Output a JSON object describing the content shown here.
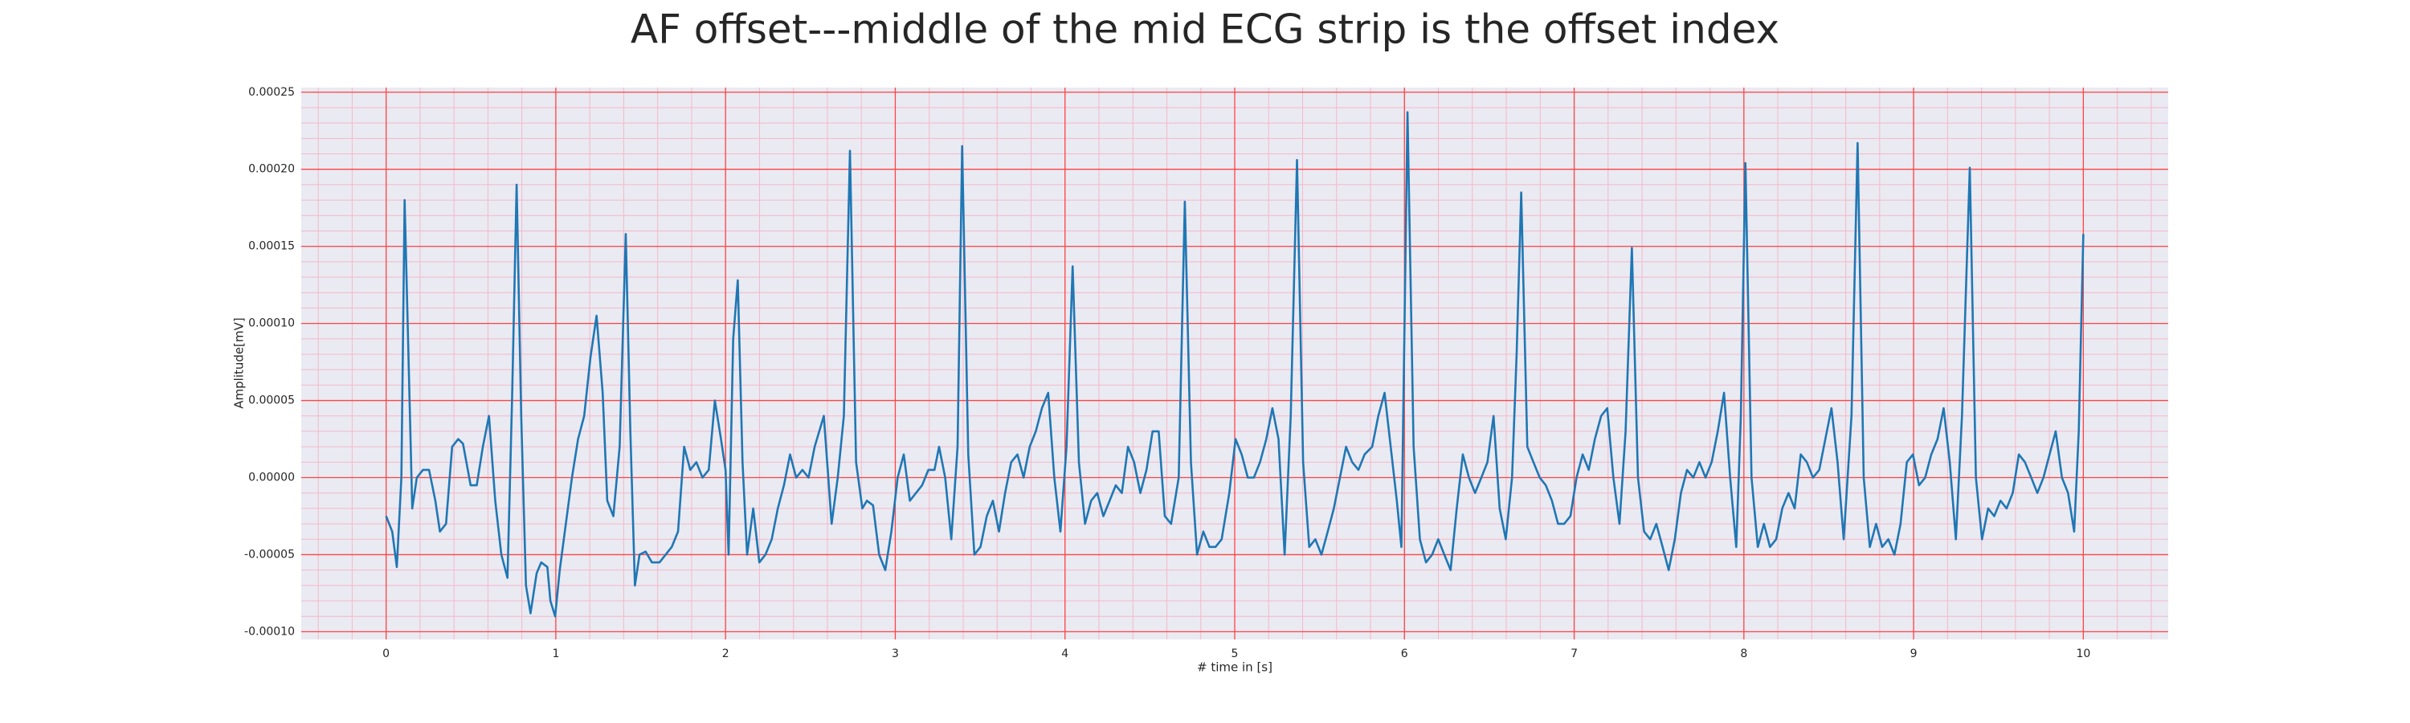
{
  "chart_data": {
    "type": "line",
    "title": "AF offset---middle of the mid ECG strip is the offset index",
    "xlabel": "# time in [s]",
    "ylabel": "Amplitude[mV]",
    "color": "#1f77b4",
    "background": "#eaeaf2",
    "grid": true,
    "grid_color": "#ff4444",
    "minor_grid": true,
    "minor_grid_divisions": 5,
    "minor_grid_color": "#f4b8c8",
    "xlim": [
      -0.5,
      10.5
    ],
    "xticks": [
      0,
      1,
      2,
      3,
      4,
      5,
      6,
      7,
      8,
      9,
      10
    ],
    "ylim": [
      -0.000105,
      0.000253
    ],
    "yticks": [
      {
        "value": -0.0001,
        "label": "-0.00010"
      },
      {
        "value": -5e-05,
        "label": "-0.00005"
      },
      {
        "value": 0,
        "label": "0.00000"
      },
      {
        "value": 5e-05,
        "label": "0.00005"
      },
      {
        "value": 0.0001,
        "label": "0.00010"
      },
      {
        "value": 0.00015,
        "label": "0.00015"
      },
      {
        "value": 0.0002,
        "label": "0.00020"
      },
      {
        "value": 0.00025,
        "label": "0.00025"
      }
    ],
    "x": [
      0,
      0.036,
      0.063,
      0.09,
      0.109,
      0.136,
      0.154,
      0.181,
      0.217,
      0.253,
      0.29,
      0.317,
      0.353,
      0.389,
      0.425,
      0.453,
      0.498,
      0.534,
      0.57,
      0.606,
      0.643,
      0.679,
      0.715,
      0.742,
      0.769,
      0.796,
      0.824,
      0.851,
      0.887,
      0.914,
      0.95,
      0.968,
      0.996,
      1.023,
      1.059,
      1.095,
      1.131,
      1.167,
      1.204,
      1.24,
      1.276,
      1.303,
      1.339,
      1.376,
      1.412,
      1.439,
      1.466,
      1.493,
      1.529,
      1.566,
      1.611,
      1.647,
      1.683,
      1.72,
      1.756,
      1.792,
      1.828,
      1.864,
      1.901,
      1.937,
      1.973,
      2.0,
      2.018,
      2.045,
      2.072,
      2.1,
      2.127,
      2.163,
      2.199,
      2.235,
      2.272,
      2.308,
      2.344,
      2.38,
      2.416,
      2.453,
      2.489,
      2.525,
      2.579,
      2.625,
      2.661,
      2.697,
      2.733,
      2.769,
      2.806,
      2.833,
      2.869,
      2.905,
      2.941,
      2.977,
      3.014,
      3.05,
      3.086,
      3.122,
      3.158,
      3.195,
      3.231,
      3.258,
      3.294,
      3.33,
      3.367,
      3.394,
      3.43,
      3.466,
      3.502,
      3.539,
      3.575,
      3.611,
      3.647,
      3.683,
      3.72,
      3.756,
      3.792,
      3.828,
      3.864,
      3.901,
      3.937,
      3.973,
      4.009,
      4.045,
      4.082,
      4.118,
      4.154,
      4.19,
      4.226,
      4.263,
      4.299,
      4.335,
      4.371,
      4.407,
      4.444,
      4.48,
      4.516,
      4.552,
      4.588,
      4.625,
      4.67,
      4.706,
      4.742,
      4.778,
      4.815,
      4.851,
      4.887,
      4.923,
      4.968,
      5.005,
      5.041,
      5.077,
      5.113,
      5.149,
      5.186,
      5.222,
      5.258,
      5.294,
      5.33,
      5.367,
      5.403,
      5.439,
      5.475,
      5.511,
      5.548,
      5.584,
      5.62,
      5.656,
      5.692,
      5.729,
      5.765,
      5.81,
      5.846,
      5.883,
      5.919,
      5.955,
      5.982,
      6.018,
      6.054,
      6.091,
      6.127,
      6.163,
      6.199,
      6.235,
      6.272,
      6.308,
      6.344,
      6.38,
      6.416,
      6.453,
      6.489,
      6.525,
      6.561,
      6.597,
      6.634,
      6.661,
      6.688,
      6.724,
      6.76,
      6.797,
      6.833,
      6.869,
      6.905,
      6.941,
      6.978,
      7.014,
      7.05,
      7.086,
      7.122,
      7.159,
      7.195,
      7.231,
      7.267,
      7.303,
      7.34,
      7.376,
      7.412,
      7.448,
      7.484,
      7.521,
      7.557,
      7.593,
      7.629,
      7.665,
      7.702,
      7.738,
      7.774,
      7.81,
      7.846,
      7.883,
      7.919,
      7.955,
      7.982,
      8.009,
      8.045,
      8.082,
      8.118,
      8.154,
      8.19,
      8.226,
      8.263,
      8.299,
      8.335,
      8.371,
      8.407,
      8.444,
      8.48,
      8.516,
      8.552,
      8.588,
      8.634,
      8.67,
      8.706,
      8.742,
      8.779,
      8.815,
      8.851,
      8.887,
      8.923,
      8.96,
      8.996,
      9.032,
      9.068,
      9.104,
      9.141,
      9.177,
      9.213,
      9.249,
      9.285,
      9.331,
      9.367,
      9.403,
      9.439,
      9.475,
      9.512,
      9.548,
      9.584,
      9.62,
      9.656,
      9.693,
      9.729,
      9.765,
      9.801,
      9.837,
      9.874,
      9.91,
      9.946,
      9.973,
      10.0
    ],
    "values": [
      -2.5e-05,
      -3.5e-05,
      -5.8e-05,
      0,
      0.00018,
      6e-05,
      -2e-05,
      0,
      5e-06,
      5e-06,
      -1.5e-05,
      -3.5e-05,
      -3e-05,
      2e-05,
      2.5e-05,
      2.2e-05,
      -5e-06,
      -5e-06,
      2e-05,
      4e-05,
      -1.5e-05,
      -5e-05,
      -6.5e-05,
      5e-05,
      0.00019,
      4e-05,
      -7e-05,
      -8.8e-05,
      -6.2e-05,
      -5.5e-05,
      -5.8e-05,
      -8e-05,
      -9e-05,
      -6e-05,
      -3e-05,
      0,
      2.5e-05,
      4e-05,
      7.8e-05,
      0.000105,
      5.5e-05,
      -1.5e-05,
      -2.5e-05,
      2e-05,
      0.000158,
      3e-05,
      -7e-05,
      -5e-05,
      -4.8e-05,
      -5.5e-05,
      -5.5e-05,
      -5e-05,
      -4.5e-05,
      -3.5e-05,
      2e-05,
      5e-06,
      1e-05,
      0,
      5e-06,
      5e-05,
      2.5e-05,
      5e-06,
      -5e-05,
      9e-05,
      0.000128,
      1e-05,
      -5e-05,
      -2e-05,
      -5.5e-05,
      -5e-05,
      -4e-05,
      -2e-05,
      -5e-06,
      1.5e-05,
      0,
      5e-06,
      0,
      2e-05,
      4e-05,
      -3e-05,
      0,
      4e-05,
      0.000212,
      1e-05,
      -2e-05,
      -1.5e-05,
      -1.8e-05,
      -5e-05,
      -6e-05,
      -3.5e-05,
      0,
      1.5e-05,
      -1.5e-05,
      -1e-05,
      -5e-06,
      5e-06,
      5e-06,
      2e-05,
      0,
      -4e-05,
      2e-05,
      0.000215,
      1.5e-05,
      -5e-05,
      -4.5e-05,
      -2.5e-05,
      -1.5e-05,
      -3.5e-05,
      -1e-05,
      1e-05,
      1.5e-05,
      0,
      2e-05,
      3e-05,
      4.5e-05,
      5.5e-05,
      0,
      -3.5e-05,
      2e-05,
      0.000137,
      1e-05,
      -3e-05,
      -1.5e-05,
      -1e-05,
      -2.5e-05,
      -1.5e-05,
      -5e-06,
      -1e-05,
      2e-05,
      1e-05,
      -1e-05,
      5e-06,
      3e-05,
      3e-05,
      -2.5e-05,
      -3e-05,
      0,
      0.000179,
      1e-05,
      -5e-05,
      -3.5e-05,
      -4.5e-05,
      -4.5e-05,
      -4e-05,
      -1e-05,
      2.5e-05,
      1.5e-05,
      0,
      0,
      1e-05,
      2.5e-05,
      4.5e-05,
      2.5e-05,
      -5e-05,
      4e-05,
      0.000206,
      1e-05,
      -4.5e-05,
      -4e-05,
      -5e-05,
      -3.5e-05,
      -2e-05,
      0,
      2e-05,
      1e-05,
      5e-06,
      1.5e-05,
      2e-05,
      4e-05,
      5.5e-05,
      2e-05,
      -1.5e-05,
      -4.5e-05,
      0.000237,
      2e-05,
      -4e-05,
      -5.5e-05,
      -5e-05,
      -4e-05,
      -5e-05,
      -6e-05,
      -2e-05,
      1.5e-05,
      0,
      -1e-05,
      0,
      1e-05,
      4e-05,
      -2e-05,
      -4e-05,
      0,
      8e-05,
      0.000185,
      2e-05,
      1e-05,
      0,
      -5e-06,
      -1.5e-05,
      -3e-05,
      -3e-05,
      -2.5e-05,
      0,
      1.5e-05,
      5e-06,
      2.5e-05,
      4e-05,
      4.5e-05,
      0,
      -3e-05,
      3e-05,
      0.000149,
      0,
      -3.5e-05,
      -4e-05,
      -3e-05,
      -4.5e-05,
      -6e-05,
      -4e-05,
      -1e-05,
      5e-06,
      0,
      1e-05,
      0,
      1e-05,
      3e-05,
      5.5e-05,
      0,
      -4.5e-05,
      4e-05,
      0.000204,
      0,
      -4.5e-05,
      -3e-05,
      -4.5e-05,
      -4e-05,
      -2e-05,
      -1e-05,
      -2e-05,
      1.5e-05,
      1e-05,
      0,
      5e-06,
      2.5e-05,
      4.5e-05,
      1e-05,
      -4e-05,
      4e-05,
      0.000217,
      0,
      -4.5e-05,
      -3e-05,
      -4.5e-05,
      -4e-05,
      -5e-05,
      -3e-05,
      1e-05,
      1.5e-05,
      -5e-06,
      0,
      1.5e-05,
      2.5e-05,
      4.5e-05,
      1e-05,
      -4e-05,
      4e-05,
      0.000201,
      0,
      -4e-05,
      -2e-05,
      -2.5e-05,
      -1.5e-05,
      -2e-05,
      -1e-05,
      1.5e-05,
      1e-05,
      0,
      -1e-05,
      0,
      1.5e-05,
      3e-05,
      0,
      -1e-05,
      -3.5e-05,
      3e-05,
      0.000158
    ]
  }
}
